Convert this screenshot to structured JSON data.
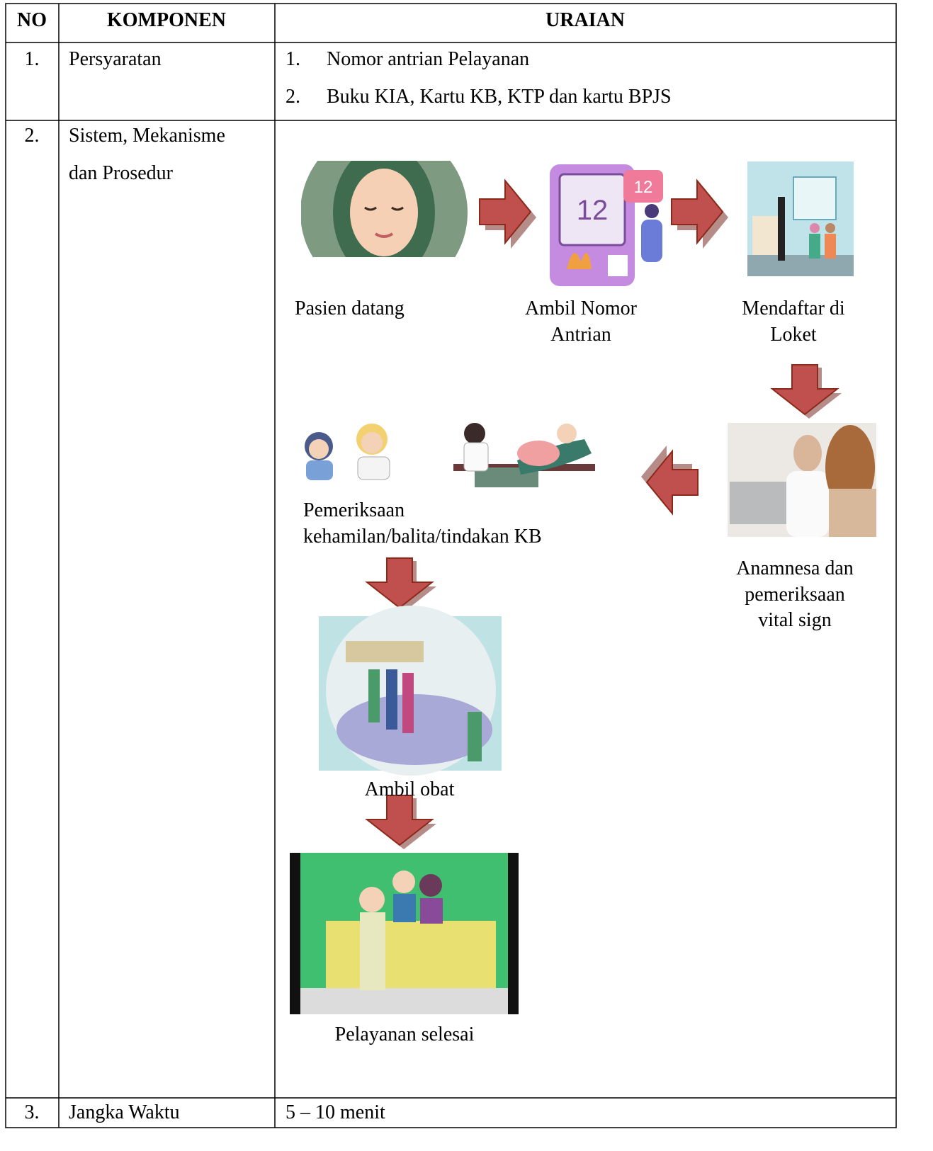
{
  "table": {
    "headers": [
      "NO",
      "KOMPONEN",
      "URAIAN"
    ],
    "rows": [
      {
        "no": "1.",
        "component": [
          "Persyaratan"
        ],
        "items": [
          {
            "num": "1.",
            "text": "Nomor antrian Pelayanan"
          },
          {
            "num": "2.",
            "text": "Buku KIA, Kartu KB, KTP dan kartu BPJS"
          }
        ]
      },
      {
        "no": "2.",
        "component": [
          "Sistem, Mekanisme",
          "dan Prosedur"
        ],
        "flow": [
          {
            "lines": [
              "Pasien datang"
            ]
          },
          {
            "lines": [
              "Ambil Nomor",
              "Antrian"
            ]
          },
          {
            "lines": [
              "Mendaftar di",
              "Loket"
            ]
          },
          {
            "lines": [
              "Anamnesa dan",
              "pemeriksaan",
              "vital sign"
            ]
          },
          {
            "lines": [
              "Pemeriksaan",
              "kehamilan/balita/tindakan KB"
            ]
          },
          {
            "lines": [
              "Ambil obat"
            ]
          },
          {
            "lines": [
              "Pelayanan selesai"
            ]
          }
        ]
      },
      {
        "no": "3.",
        "component": [
          "Jangka Waktu"
        ],
        "text": "5 – 10 menit"
      }
    ]
  }
}
